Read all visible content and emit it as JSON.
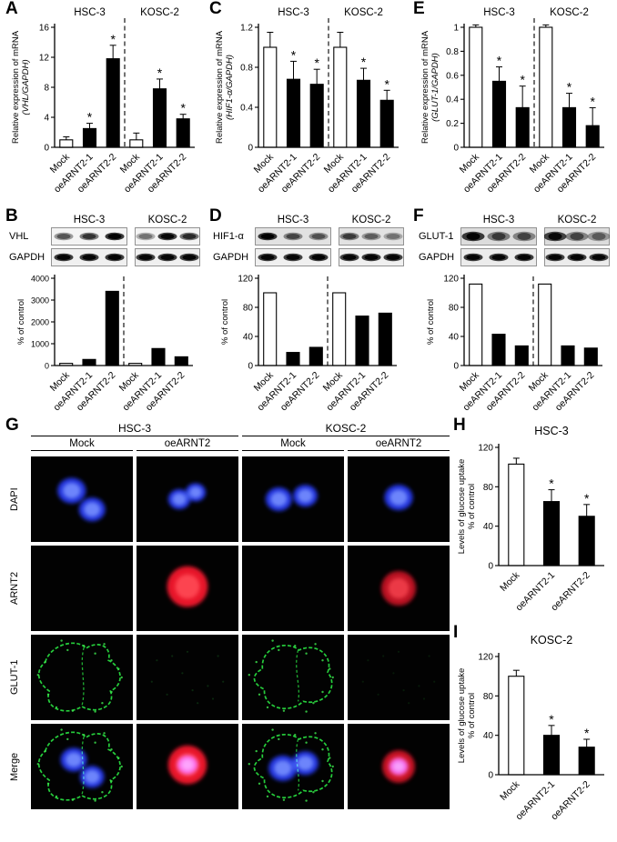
{
  "figure": {
    "panel_letters": [
      "A",
      "B",
      "C",
      "D",
      "E",
      "F",
      "G",
      "H",
      "I"
    ]
  },
  "chart_data": [
    {
      "id": "A",
      "panel": "A",
      "type": "bar",
      "group_labels": [
        "HSC-3",
        "KOSC-2"
      ],
      "categories": [
        "Mock",
        "oeARNT2-1",
        "oeARNT2-2",
        "Mock",
        "oeARNT2-1",
        "oeARNT2-2"
      ],
      "values": [
        1.0,
        2.5,
        11.8,
        1.0,
        7.8,
        3.8
      ],
      "errors": [
        0.4,
        0.7,
        1.8,
        0.9,
        1.3,
        0.6
      ],
      "significant": [
        false,
        true,
        true,
        false,
        true,
        true
      ],
      "bar_fills": [
        "white",
        "black",
        "black",
        "white",
        "black",
        "black"
      ],
      "ylabel": "Relative expression of mRNA",
      "ylabel2": "(VHL/GAPDH)",
      "ylabel2_italic": true,
      "ylim": [
        0,
        16
      ],
      "yticks": [
        0,
        4,
        8,
        12,
        16
      ],
      "separator": true
    },
    {
      "id": "C",
      "panel": "C",
      "type": "bar",
      "group_labels": [
        "HSC-3",
        "KOSC-2"
      ],
      "categories": [
        "Mock",
        "oeARNT2-1",
        "oeARNT2-2",
        "Mock",
        "oeARNT2-1",
        "oeARNT2-2"
      ],
      "values": [
        1.0,
        0.68,
        0.63,
        1.0,
        0.67,
        0.47
      ],
      "errors": [
        0.15,
        0.18,
        0.15,
        0.15,
        0.12,
        0.1
      ],
      "significant": [
        false,
        true,
        true,
        false,
        true,
        true
      ],
      "bar_fills": [
        "white",
        "black",
        "black",
        "white",
        "black",
        "black"
      ],
      "ylabel": "Relative expression of mRNA",
      "ylabel2": "(HIF1-α/GAPDH)",
      "ylabel2_italic": true,
      "ylim": [
        0,
        1.2
      ],
      "yticks": [
        0,
        0.4,
        0.8,
        1.2
      ],
      "separator": true
    },
    {
      "id": "E",
      "panel": "E",
      "type": "bar",
      "group_labels": [
        "HSC-3",
        "KOSC-2"
      ],
      "categories": [
        "Mock",
        "oeARNT2-1",
        "oeARNT2-2",
        "Mock",
        "oeARNT2-1",
        "oeARNT2-2"
      ],
      "values": [
        1.0,
        0.55,
        0.33,
        1.0,
        0.33,
        0.18
      ],
      "errors": [
        0.02,
        0.12,
        0.18,
        0.02,
        0.12,
        0.15
      ],
      "significant": [
        false,
        true,
        true,
        false,
        true,
        true
      ],
      "bar_fills": [
        "white",
        "black",
        "black",
        "white",
        "black",
        "black"
      ],
      "ylabel": "Relative expression of mRNA",
      "ylabel2": "(GLUT-1/GAPDH)",
      "ylabel2_italic": true,
      "ylim": [
        0,
        1
      ],
      "yticks": [
        0,
        0.2,
        0.4,
        0.6,
        0.8,
        1
      ],
      "separator": true
    },
    {
      "id": "Bq",
      "panel": "B",
      "type": "bar",
      "categories": [
        "Mock",
        "oeARNT2-1",
        "oeARNT2-2",
        "Mock",
        "oeARNT2-1",
        "oeARNT2-2"
      ],
      "values": [
        100,
        280,
        3400,
        100,
        780,
        400
      ],
      "bar_fills": [
        "white",
        "black",
        "black",
        "white",
        "black",
        "black"
      ],
      "ylabel": "% of control",
      "ylim": [
        0,
        4000
      ],
      "yticks": [
        0,
        1000,
        2000,
        3000,
        4000
      ],
      "separator": true
    },
    {
      "id": "Dq",
      "panel": "D",
      "type": "bar",
      "categories": [
        "Mock",
        "oeARNT2-1",
        "oeARNT2-2",
        "Mock",
        "oeARNT2-1",
        "oeARNT2-2"
      ],
      "values": [
        100,
        18,
        25,
        100,
        68,
        72
      ],
      "bar_fills": [
        "white",
        "black",
        "black",
        "white",
        "black",
        "black"
      ],
      "ylabel": "% of control",
      "ylim": [
        0,
        120
      ],
      "yticks": [
        0,
        40,
        80,
        120
      ],
      "separator": true
    },
    {
      "id": "Fq",
      "panel": "F",
      "type": "bar",
      "categories": [
        "Mock",
        "oeARNT2-1",
        "oeARNT2-2",
        "Mock",
        "oeARNT2-1",
        "oeARNT2-2"
      ],
      "values": [
        112,
        43,
        27,
        112,
        27,
        24
      ],
      "bar_fills": [
        "white",
        "black",
        "black",
        "white",
        "black",
        "black"
      ],
      "ylabel": "% of control",
      "ylim": [
        0,
        120
      ],
      "yticks": [
        0,
        40,
        80,
        120
      ],
      "separator": true
    },
    {
      "id": "H",
      "panel": "H",
      "type": "bar",
      "title": "HSC-3",
      "categories": [
        "Mock",
        "oeARNT2-1",
        "oeARNT2-2"
      ],
      "values": [
        103,
        65,
        50
      ],
      "errors": [
        6,
        12,
        12
      ],
      "significant": [
        false,
        true,
        true
      ],
      "bar_fills": [
        "white",
        "black",
        "black"
      ],
      "ylabel": "Levels of glucose uptake",
      "ylabel2": "% of control",
      "ylabel2_italic": false,
      "ylim": [
        0,
        120
      ],
      "yticks": [
        0,
        40,
        80,
        120
      ]
    },
    {
      "id": "I",
      "panel": "I",
      "type": "bar",
      "title": "KOSC-2",
      "categories": [
        "Mock",
        "oeARNT2-1",
        "oeARNT2-2"
      ],
      "values": [
        100,
        40,
        28
      ],
      "errors": [
        6,
        10,
        8
      ],
      "significant": [
        false,
        true,
        true
      ],
      "bar_fills": [
        "white",
        "black",
        "black"
      ],
      "ylabel": "Levels of glucose uptake",
      "ylabel2": "% of control",
      "ylabel2_italic": false,
      "ylim": [
        0,
        120
      ],
      "yticks": [
        0,
        40,
        80,
        120
      ]
    }
  ],
  "blots": {
    "B": {
      "cell_lines": [
        "HSC-3",
        "KOSC-2"
      ],
      "rows": [
        {
          "label": "VHL",
          "bg": "#f4f4f4",
          "lanes": [
            [
              0.45,
              0.6,
              0.95
            ],
            [
              0.35,
              0.9,
              0.65
            ]
          ]
        },
        {
          "label": "GAPDH",
          "bg": "#f0f0f0",
          "lanes": [
            [
              0.92,
              0.9,
              0.93
            ],
            [
              0.9,
              0.92,
              0.9
            ]
          ]
        }
      ]
    },
    "D": {
      "cell_lines": [
        "HSC-3",
        "KOSC-2"
      ],
      "rows": [
        {
          "label": "HIF1-α",
          "bg": "#e2e2e2",
          "lanes": [
            [
              0.95,
              0.5,
              0.45
            ],
            [
              0.55,
              0.4,
              0.32
            ]
          ]
        },
        {
          "label": "GAPDH",
          "bg": "#f0f0f0",
          "lanes": [
            [
              0.92,
              0.9,
              0.93
            ],
            [
              0.9,
              0.92,
              0.9
            ]
          ]
        }
      ]
    },
    "F": {
      "cell_lines": [
        "HSC-3",
        "KOSC-2"
      ],
      "rows": [
        {
          "label": "GLUT-1",
          "bg": "#dcdcdc",
          "smear": true,
          "lanes": [
            [
              0.92,
              0.55,
              0.5
            ],
            [
              0.88,
              0.5,
              0.4
            ]
          ]
        },
        {
          "label": "GAPDH",
          "bg": "#ececec",
          "lanes": [
            [
              0.92,
              0.9,
              0.93
            ],
            [
              0.9,
              0.92,
              0.9
            ]
          ]
        }
      ]
    }
  },
  "microscopy": {
    "group_labels": [
      "HSC-3",
      "KOSC-2"
    ],
    "col_labels": [
      "Mock",
      "oeARNT2",
      "Mock",
      "oeARNT2"
    ],
    "row_labels": [
      "DAPI",
      "ARNT2",
      "GLUT-1",
      "Merge"
    ],
    "channel_colors": {
      "dapi": "#2334e8",
      "arnt2": "#e8192c",
      "glut1": "#25d83c"
    },
    "cells": [
      [
        {
          "nuclei": [
            [
              0.4,
              0.4,
              0.14
            ],
            [
              0.6,
              0.62,
              0.13
            ]
          ]
        },
        {
          "nuclei": [
            [
              0.42,
              0.5,
              0.11
            ],
            [
              0.58,
              0.42,
              0.1
            ]
          ]
        },
        {
          "nuclei": [
            [
              0.36,
              0.5,
              0.13
            ],
            [
              0.62,
              0.46,
              0.12
            ]
          ]
        },
        {
          "nuclei": [
            [
              0.5,
              0.48,
              0.14
            ]
          ]
        }
      ],
      [
        {},
        {
          "red": [
            0.5,
            0.48,
            0.2,
            1
          ]
        },
        {},
        {
          "red": [
            0.5,
            0.5,
            0.17,
            0.8
          ]
        }
      ],
      [
        {
          "membrane": "A",
          "speckle": 0.9
        },
        {
          "speckle": 0.2
        },
        {
          "membrane": "B",
          "speckle": 0.9
        },
        {
          "speckle": 0.13
        }
      ],
      [
        {
          "membrane": "A",
          "speckle": 0.9,
          "nuclei": [
            [
              0.42,
              0.42,
              0.13
            ],
            [
              0.6,
              0.62,
              0.12
            ]
          ]
        },
        {
          "red": [
            0.5,
            0.48,
            0.19,
            1
          ],
          "nuclei": [
            [
              0.5,
              0.48,
              0.1
            ]
          ]
        },
        {
          "membrane": "B",
          "speckle": 0.9,
          "nuclei": [
            [
              0.4,
              0.52,
              0.14
            ],
            [
              0.62,
              0.46,
              0.13
            ]
          ]
        },
        {
          "red": [
            0.5,
            0.5,
            0.16,
            0.85
          ],
          "nuclei": [
            [
              0.5,
              0.5,
              0.09
            ]
          ]
        }
      ]
    ]
  }
}
